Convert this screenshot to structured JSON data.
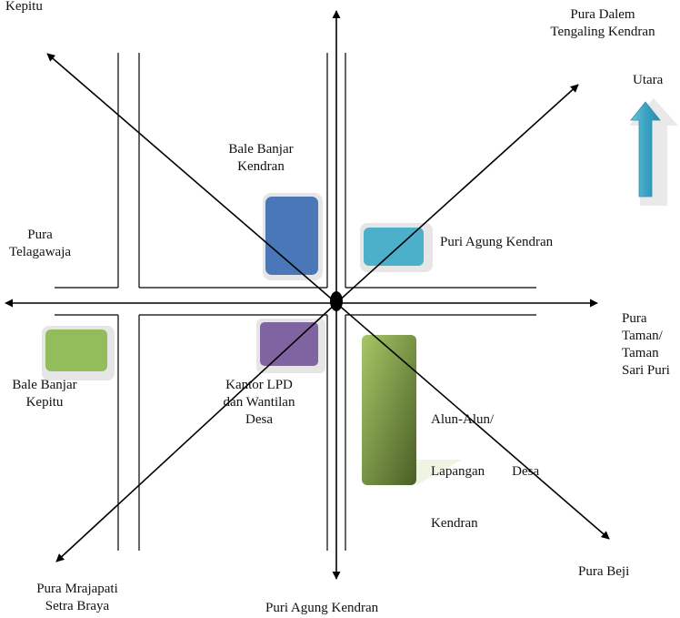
{
  "labels": {
    "kepitu": "Kepitu",
    "pura_dalem": [
      "Pura Dalem",
      "Tengaling Kendran"
    ],
    "utara": "Utara",
    "bale_banjar_kendran": [
      "Bale Banjar",
      "Kendran"
    ],
    "pura_telagawaja": [
      "Pura",
      "Telagawaja"
    ],
    "puri_agung_east": "Puri Agung Kendran",
    "pura_taman": [
      "Pura",
      "Taman/",
      "Taman",
      "Sari Puri"
    ],
    "bale_banjar_kepitu": [
      "Bale Banjar",
      "Kepitu"
    ],
    "kantor_lpd": [
      "Kantor LPD",
      "dan Wantilan",
      "Desa"
    ],
    "alun_alun": [
      "Alun-Alun/",
      "Lapangan        Desa",
      "Kendran"
    ],
    "pura_mrajapati": [
      "Pura Mrajapati",
      "Setra Braya"
    ],
    "puri_agung_south": "Puri Agung Kendran",
    "pura_beji": "Pura Beji"
  },
  "colors": {
    "bale_banjar_kendran": "#4a77b8",
    "puri_agung": "#4db0cb",
    "bale_banjar_kepitu": "#93bd5a",
    "kantor_lpd": "#8064a2",
    "alun_alun_light": "#9bbb59",
    "alun_alun_dark": "#4f6228",
    "north_arrow": "#3aa3c4",
    "ink": "#000000"
  }
}
